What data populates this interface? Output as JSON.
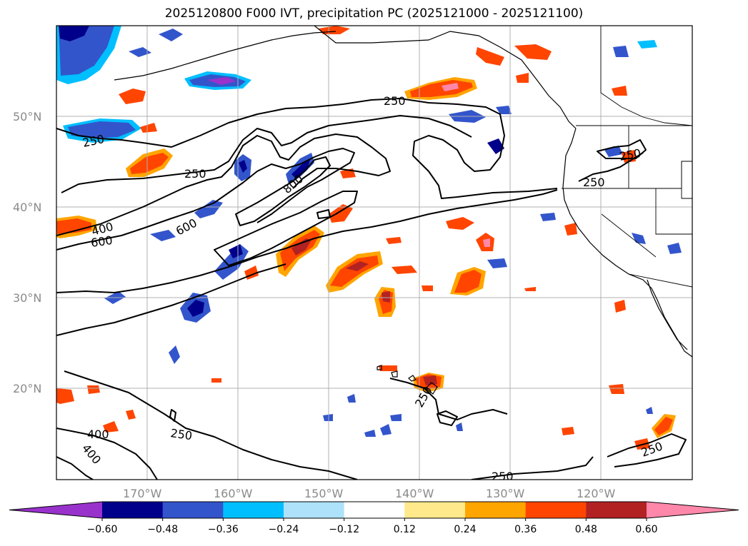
{
  "title": "2025120800 F000 IVT, precipitation PC (2025121000 - 2025121100)",
  "lat_labels": [
    "50°N",
    "40°N",
    "30°N",
    "20°N"
  ],
  "lon_labels": [
    "170°W",
    "160°W",
    "150°W",
    "140°W",
    "130°W",
    "120°W"
  ],
  "ivt_contour_labels": [
    "250",
    "250",
    "250",
    "250",
    "250",
    "250",
    "250",
    "250",
    "250",
    "400",
    "400",
    "400",
    "600",
    "600",
    "800"
  ],
  "colorbar": {
    "ticks": [
      "−0.60",
      "−0.48",
      "−0.36",
      "−0.24",
      "−0.12",
      "0.12",
      "0.24",
      "0.36",
      "0.48",
      "0.60"
    ],
    "colors": [
      "#9932cc",
      "#00008b",
      "#3355cc",
      "#00bfff",
      "#aee2fa",
      "#ffffff",
      "#ffe98a",
      "#ffa500",
      "#ff4500",
      "#b22222",
      "#ff88aa"
    ]
  },
  "chart_data": {
    "type": "heatmap",
    "title": "2025120800 F000 IVT, precipitation PC (2025121000 - 2025121100)",
    "lat_range": [
      10,
      60
    ],
    "lon_range": [
      -180,
      -110
    ],
    "contour_levels_ivt": [
      250,
      400,
      600,
      800
    ],
    "colorbar_levels": [
      -0.6,
      -0.48,
      -0.36,
      -0.24,
      -0.12,
      0.12,
      0.24,
      0.36,
      0.48,
      0.6
    ]
  }
}
